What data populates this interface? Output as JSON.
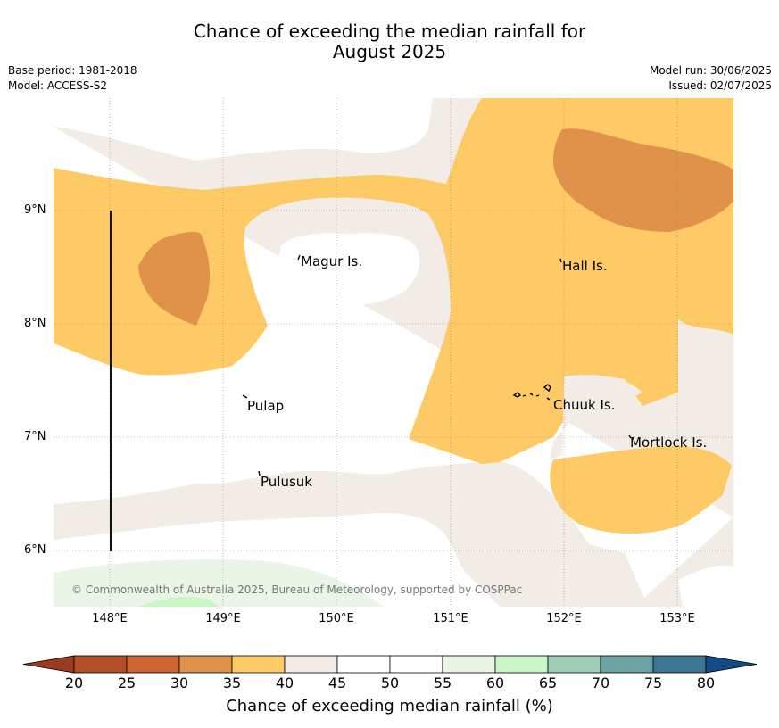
{
  "title": {
    "line1": "Chance of exceeding the median rainfall for",
    "line2": "August 2025"
  },
  "meta": {
    "base_period": "Base period: 1981-2018",
    "model": "Model: ACCESS-S2",
    "model_run": "Model run: 30/06/2025",
    "issued": "Issued: 02/07/2025"
  },
  "axes": {
    "lon_ticks": [
      "148°E",
      "149°E",
      "150°E",
      "151°E",
      "152°E",
      "153°E"
    ],
    "lat_ticks": [
      "9°N",
      "8°N",
      "7°N",
      "6°N"
    ]
  },
  "places": {
    "magur": "Magur Is.",
    "hall": "Hall Is.",
    "pulap": "Pulap",
    "chuuk": "Chuuk Is.",
    "mortlock": "Mortlock Is.",
    "pulusuk": "Pulusuk"
  },
  "copyright": "© Commonwealth of Australia 2025, Bureau of Meteorology, supported by COSPPac",
  "colorbar": {
    "label": "Chance of exceeding median rainfall (%)",
    "ticks": [
      "20",
      "25",
      "30",
      "35",
      "40",
      "45",
      "50",
      "55",
      "60",
      "65",
      "70",
      "75",
      "80"
    ],
    "colors": [
      "#b44d24",
      "#cd6633",
      "#e0924a",
      "#fdca66",
      "#f1ede6",
      "#ffffff",
      "#ffffff",
      "#eaf5e7",
      "#c8f7c5",
      "#9ccfb5",
      "#6aa4a4",
      "#3c7591"
    ],
    "under_color": "#9b3a1e",
    "over_color": "#134b86"
  }
}
